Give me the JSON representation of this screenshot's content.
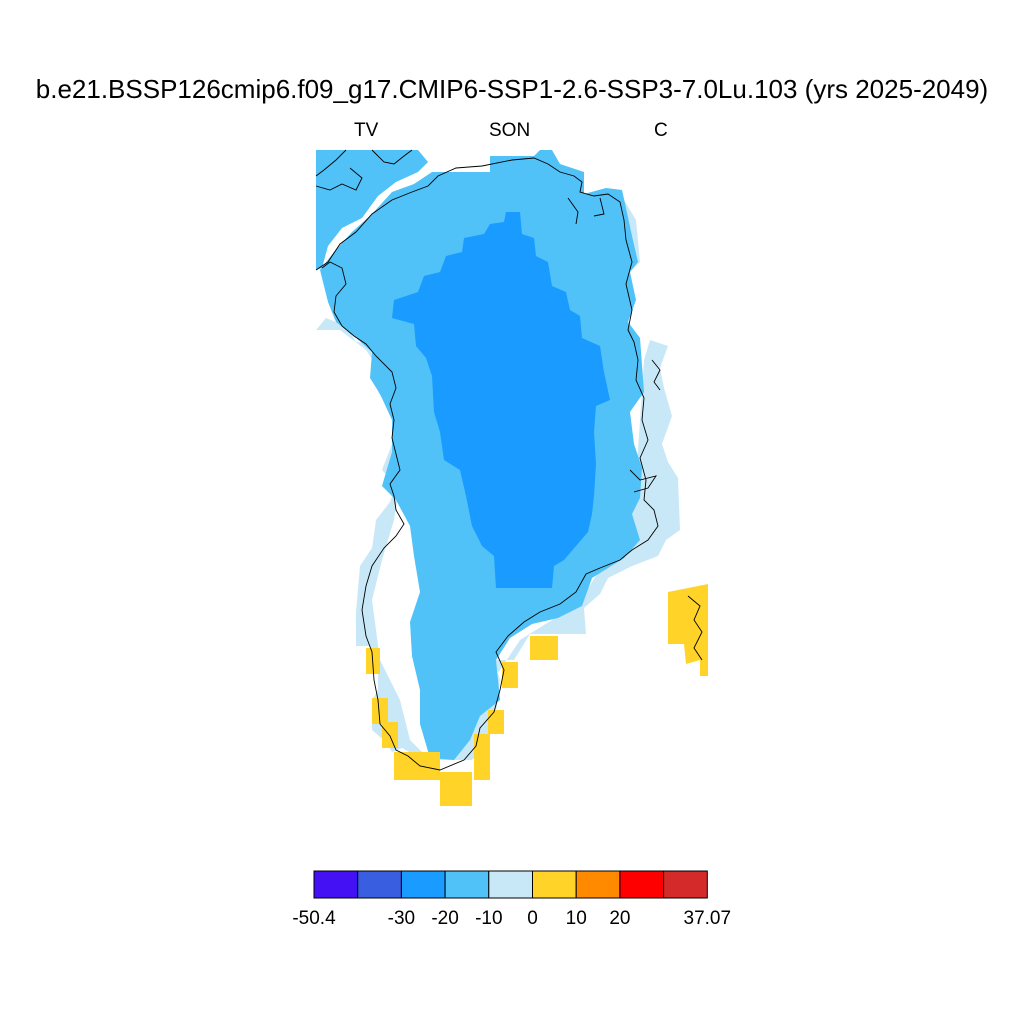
{
  "title": "b.e21.BSSP126cmip6.f09_g17.CMIP6-SSP1-2.6-SSP3-7.0Lu.103 (yrs 2025-2049)",
  "subtitles": {
    "left": "TV",
    "center": "SON",
    "right": "C"
  },
  "colorbar": {
    "colors": [
      "#4411f5",
      "#3a5ee0",
      "#1a9bff",
      "#50c2f7",
      "#c9e8f7",
      "#ffd327",
      "#ff8a00",
      "#ff0000",
      "#d42a2a"
    ],
    "labels": [
      "-50.4",
      "-30",
      "-20",
      "-10",
      "0",
      "10",
      "20",
      "37.07"
    ]
  },
  "map": {
    "region": "Greenland",
    "field_classes": {
      "core": "-30 to -20",
      "middle": "-20 to -10",
      "margin": "-10 to 0",
      "warm_patches": "0 to 10"
    }
  }
}
